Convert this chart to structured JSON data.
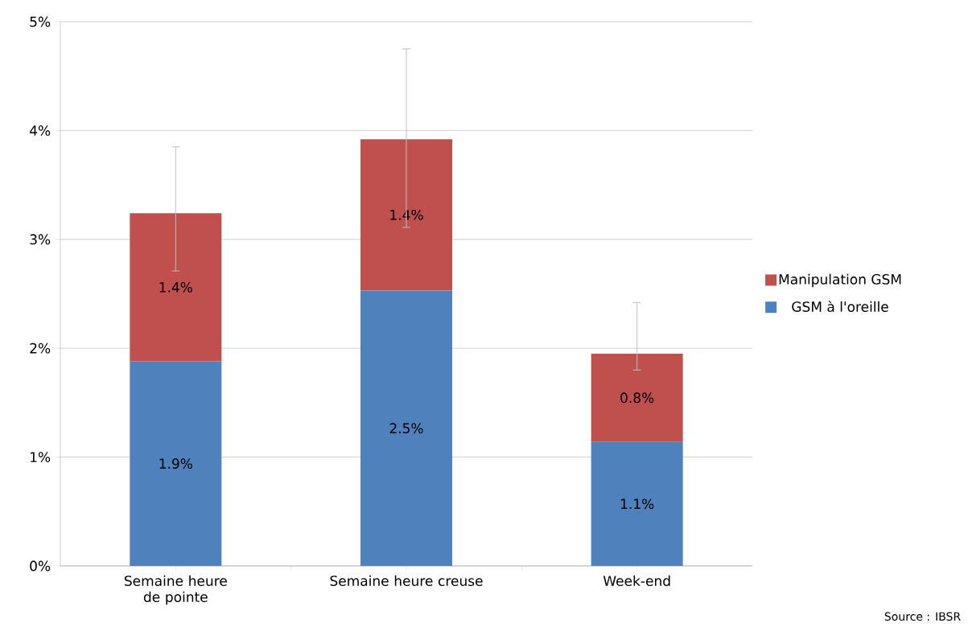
{
  "chart_data": {
    "type": "bar",
    "stacked": true,
    "categories": [
      "Semaine heure de pointe",
      "Semaine heure creuse",
      "Week-end"
    ],
    "series": [
      {
        "name": "GSM à l'oreille",
        "color": "#4f81bd",
        "values": [
          1.88,
          2.53,
          1.14
        ],
        "value_labels": [
          "1.9%",
          "2.5%",
          "1.1%"
        ]
      },
      {
        "name": "Manipulation GSM",
        "color": "#c0504d",
        "values": [
          1.36,
          1.39,
          0.81
        ],
        "value_labels": [
          "1.4%",
          "1.4%",
          "0.8%"
        ],
        "errors": [
          [
            2.71,
            3.85
          ],
          [
            3.11,
            4.75
          ],
          [
            1.8,
            2.42
          ]
        ]
      }
    ],
    "ylim": [
      0,
      5
    ],
    "yticks": [
      {
        "value": 0,
        "label": "0%"
      },
      {
        "value": 1,
        "label": "1%"
      },
      {
        "value": 2,
        "label": "2%"
      },
      {
        "value": 3,
        "label": "3%"
      },
      {
        "value": 4,
        "label": "4%"
      },
      {
        "value": 5,
        "label": "5%"
      }
    ],
    "grid": "y",
    "legend": "right",
    "annotations": [
      "Source : IBSR"
    ]
  }
}
